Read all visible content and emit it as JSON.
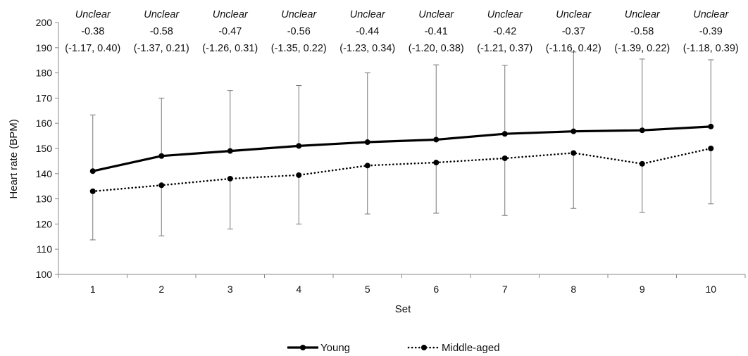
{
  "chart_data": {
    "type": "line",
    "title": "",
    "xlabel": "Set",
    "ylabel": "Heart rate (BPM)",
    "ylim": [
      100,
      200
    ],
    "yticks": [
      100,
      110,
      120,
      130,
      140,
      150,
      160,
      170,
      180,
      190,
      200
    ],
    "categories": [
      "1",
      "2",
      "3",
      "4",
      "5",
      "6",
      "7",
      "8",
      "9",
      "10"
    ],
    "grid": false,
    "legend_position": "bottom",
    "series": [
      {
        "name": "Young",
        "style": "solid",
        "color": "#000000",
        "values": [
          141,
          147,
          149,
          151,
          152.5,
          153.5,
          155.8,
          156.8,
          157.2,
          158.7
        ],
        "error_direction": "up",
        "error": [
          22.3,
          23,
          24,
          24,
          27.5,
          29.7,
          27.2,
          31.5,
          28.3,
          26.5
        ]
      },
      {
        "name": "Middle-aged",
        "style": "dotted",
        "color": "#000000",
        "values": [
          133,
          135.4,
          138,
          139.4,
          143.2,
          144.4,
          146.1,
          148.2,
          143.9,
          150
        ],
        "error_direction": "down",
        "error": [
          19.3,
          20.1,
          20,
          19.4,
          19.2,
          20.1,
          22.7,
          22,
          19.3,
          22
        ]
      }
    ],
    "annotations": [
      {
        "label": "Unclear",
        "value": "-0.38",
        "ci": "(-1.17, 0.40)"
      },
      {
        "label": "Unclear",
        "value": "-0.58",
        "ci": "(-1.37, 0.21)"
      },
      {
        "label": "Unclear",
        "value": "-0.47",
        "ci": "(-1.26, 0.31)"
      },
      {
        "label": "Unclear",
        "value": "-0.56",
        "ci": "(-1.35, 0.22)"
      },
      {
        "label": "Unclear",
        "value": "-0.44",
        "ci": "(-1.23, 0.34)"
      },
      {
        "label": "Unclear",
        "value": "-0.41",
        "ci": "(-1.20, 0.38)"
      },
      {
        "label": "Unclear",
        "value": "-0.42",
        "ci": "(-1.21, 0.37)"
      },
      {
        "label": "Unclear",
        "value": "-0.37",
        "ci": "(-1.16, 0.42)"
      },
      {
        "label": "Unclear",
        "value": "-0.58",
        "ci": "(-1.39, 0.22)"
      },
      {
        "label": "Unclear",
        "value": "-0.39",
        "ci": "(-1.18, 0.39)"
      }
    ]
  }
}
